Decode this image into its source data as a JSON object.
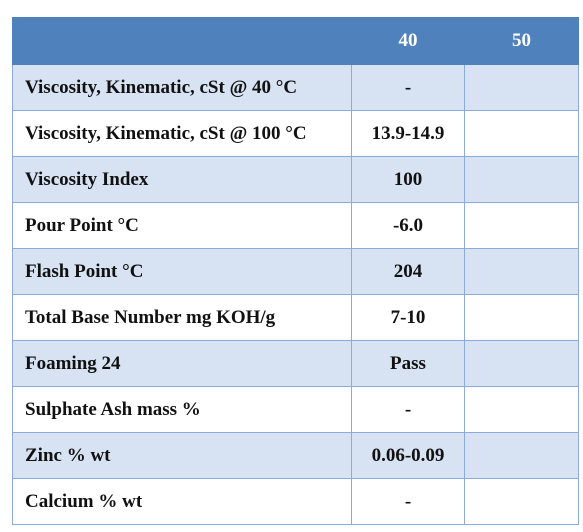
{
  "table": {
    "headers": [
      "",
      "40",
      "50"
    ],
    "rows": [
      {
        "property": "Viscosity, Kinematic, cSt @ 40 °C",
        "v40": "-",
        "v50": ""
      },
      {
        "property": "Viscosity, Kinematic, cSt @ 100 °C",
        "v40": "13.9-14.9",
        "v50": ""
      },
      {
        "property": "Viscosity Index",
        "v40": "100",
        "v50": ""
      },
      {
        "property": "Pour Point °C",
        "v40": "-6.0",
        "v50": ""
      },
      {
        "property": "Flash Point °C",
        "v40": "204",
        "v50": ""
      },
      {
        "property": "Total Base Number mg KOH/g",
        "v40": "7-10",
        "v50": ""
      },
      {
        "property": "Foaming 24",
        "v40": "Pass",
        "v50": ""
      },
      {
        "property": "Sulphate Ash mass %",
        "v40": "-",
        "v50": ""
      },
      {
        "property": "Zinc % wt",
        "v40": "0.06-0.09",
        "v50": ""
      },
      {
        "property": "Calcium % wt",
        "v40": "-",
        "v50": ""
      }
    ]
  },
  "colors": {
    "header_bg": "#4f81bd",
    "band_bg": "#d7e2f2",
    "plain_bg": "#ffffff",
    "border": "#8eaadb"
  }
}
